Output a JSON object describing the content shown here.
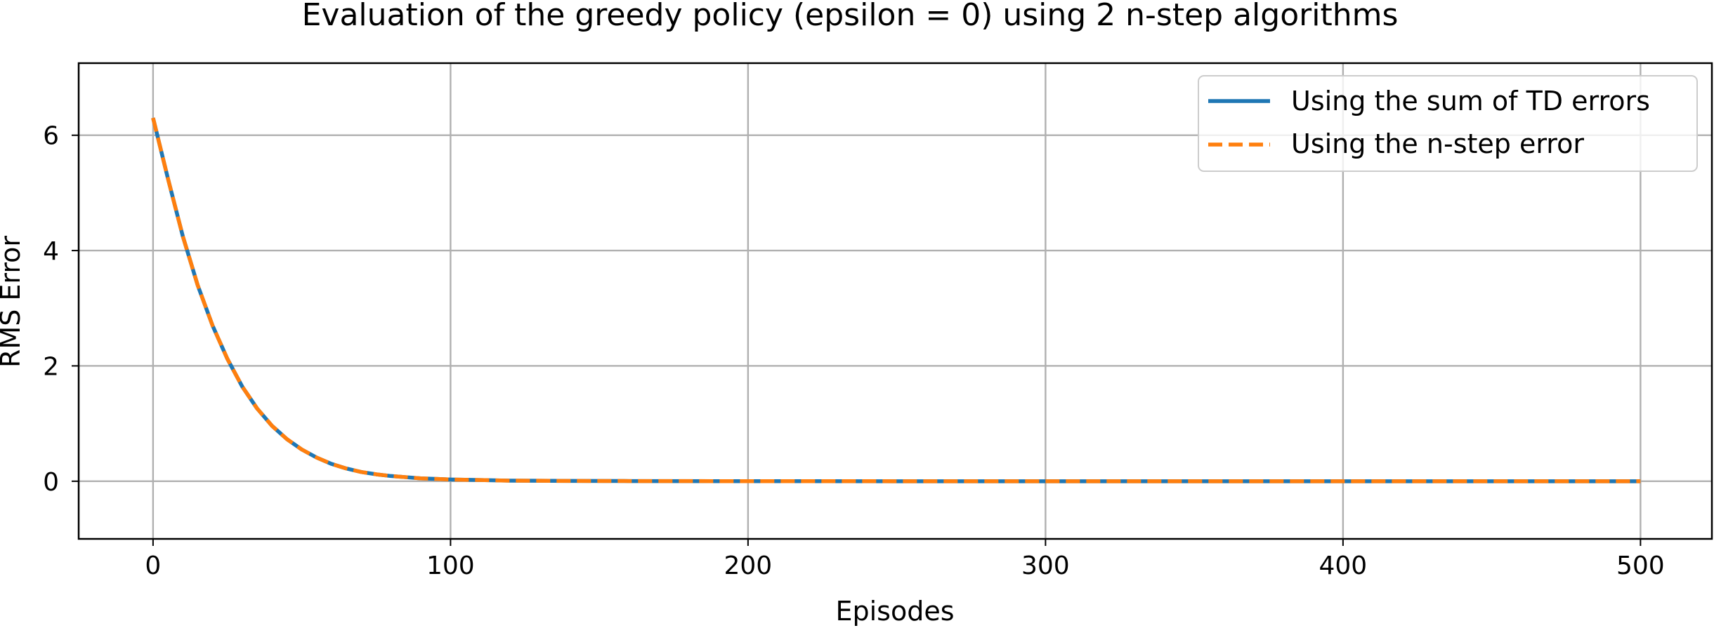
{
  "chart_data": {
    "type": "line",
    "title": "Evaluation of the greedy policy (epsilon = 0) using 2 n-step algorithms",
    "xlabel": "Episodes",
    "ylabel": "RMS Error",
    "xlim": [
      -25,
      524
    ],
    "ylim": [
      -1,
      7.25
    ],
    "xticks": [
      0,
      100,
      200,
      300,
      400,
      500
    ],
    "yticks": [
      0,
      2,
      4,
      6
    ],
    "grid": true,
    "legend_position": "upper right",
    "series": [
      {
        "name": "Using the sum of TD errors",
        "color": "#1f77b4",
        "linestyle": "solid",
        "x": [
          0,
          5,
          10,
          15,
          20,
          25,
          30,
          35,
          40,
          45,
          50,
          55,
          60,
          65,
          70,
          75,
          80,
          85,
          90,
          95,
          100,
          110,
          120,
          140,
          160,
          200,
          250,
          300,
          350,
          400,
          450,
          500
        ],
        "y": [
          6.3,
          5.25,
          4.25,
          3.4,
          2.7,
          2.12,
          1.64,
          1.26,
          0.96,
          0.73,
          0.55,
          0.41,
          0.3,
          0.22,
          0.16,
          0.12,
          0.09,
          0.07,
          0.05,
          0.04,
          0.03,
          0.02,
          0.01,
          0.005,
          0.003,
          0.001,
          0.0,
          0.0,
          0.0,
          0.0,
          0.0,
          0.0
        ]
      },
      {
        "name": "Using the n-step error",
        "color": "#ff7f0e",
        "linestyle": "dashed",
        "x": [
          0,
          5,
          10,
          15,
          20,
          25,
          30,
          35,
          40,
          45,
          50,
          55,
          60,
          65,
          70,
          75,
          80,
          85,
          90,
          95,
          100,
          110,
          120,
          140,
          160,
          200,
          250,
          300,
          350,
          400,
          450,
          500
        ],
        "y": [
          6.3,
          5.25,
          4.25,
          3.4,
          2.7,
          2.12,
          1.64,
          1.26,
          0.96,
          0.73,
          0.55,
          0.41,
          0.3,
          0.22,
          0.16,
          0.12,
          0.09,
          0.07,
          0.05,
          0.04,
          0.03,
          0.02,
          0.01,
          0.005,
          0.003,
          0.001,
          0.0,
          0.0,
          0.0,
          0.0,
          0.0,
          0.0
        ]
      }
    ]
  }
}
